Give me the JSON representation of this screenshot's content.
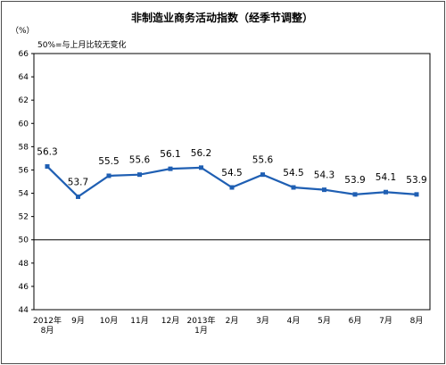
{
  "chart_data": {
    "type": "line",
    "title": "非制造业商务活动指数（经季节调整）",
    "ylabel": "（%）",
    "annotation": "50%=与上月比较无变化",
    "categories": [
      [
        "2012年",
        "8月"
      ],
      [
        "9月"
      ],
      [
        "10月"
      ],
      [
        "11月"
      ],
      [
        "12月"
      ],
      [
        "2013年",
        "1月"
      ],
      [
        "2月"
      ],
      [
        "3月"
      ],
      [
        "4月"
      ],
      [
        "5月"
      ],
      [
        "6月"
      ],
      [
        "7月"
      ],
      [
        "8月"
      ]
    ],
    "series": [
      {
        "values": [
          56.3,
          53.7,
          55.5,
          55.6,
          56.1,
          56.2,
          54.5,
          55.6,
          54.5,
          54.3,
          53.9,
          54.1,
          53.9
        ]
      }
    ],
    "data_labels": [
      "56.3",
      "53.7",
      "55.5",
      "55.6",
      "56.1",
      "56.2",
      "54.5",
      "55.6",
      "54.5",
      "54.3",
      "53.9",
      "54.1",
      "53.9"
    ],
    "ylim": [
      44,
      66
    ],
    "yticks": [
      44,
      46,
      48,
      50,
      52,
      54,
      56,
      58,
      60,
      62,
      64,
      66
    ],
    "reference_line": 50,
    "grid": false,
    "colors": {
      "line": "#1f5fb3",
      "marker": "#1f5fb3",
      "axis": "#000000",
      "frame": "#4d4d4d"
    }
  }
}
